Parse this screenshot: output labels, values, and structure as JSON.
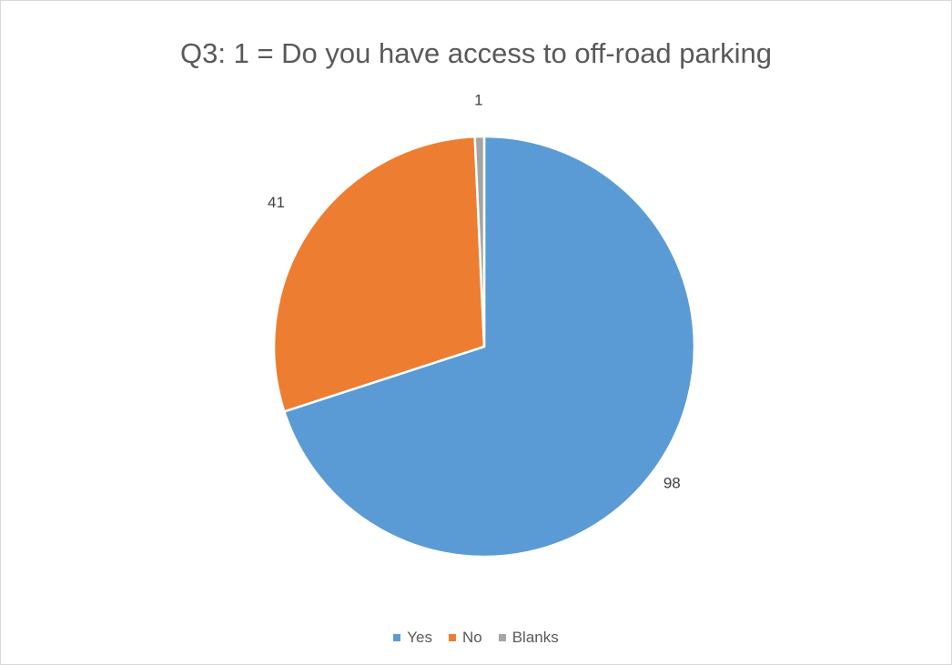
{
  "chart_data": {
    "type": "pie",
    "title": "Q3: 1 = Do you have access to off-road parking",
    "categories": [
      "Yes",
      "No",
      "Blanks"
    ],
    "values": [
      98,
      41,
      1
    ],
    "data_labels": [
      "98",
      "41",
      "1"
    ],
    "colors": [
      "#5b9bd5",
      "#ed7d31",
      "#a5a5a5"
    ],
    "legend_position": "bottom",
    "start_angle": "12 o'clock, clockwise"
  }
}
